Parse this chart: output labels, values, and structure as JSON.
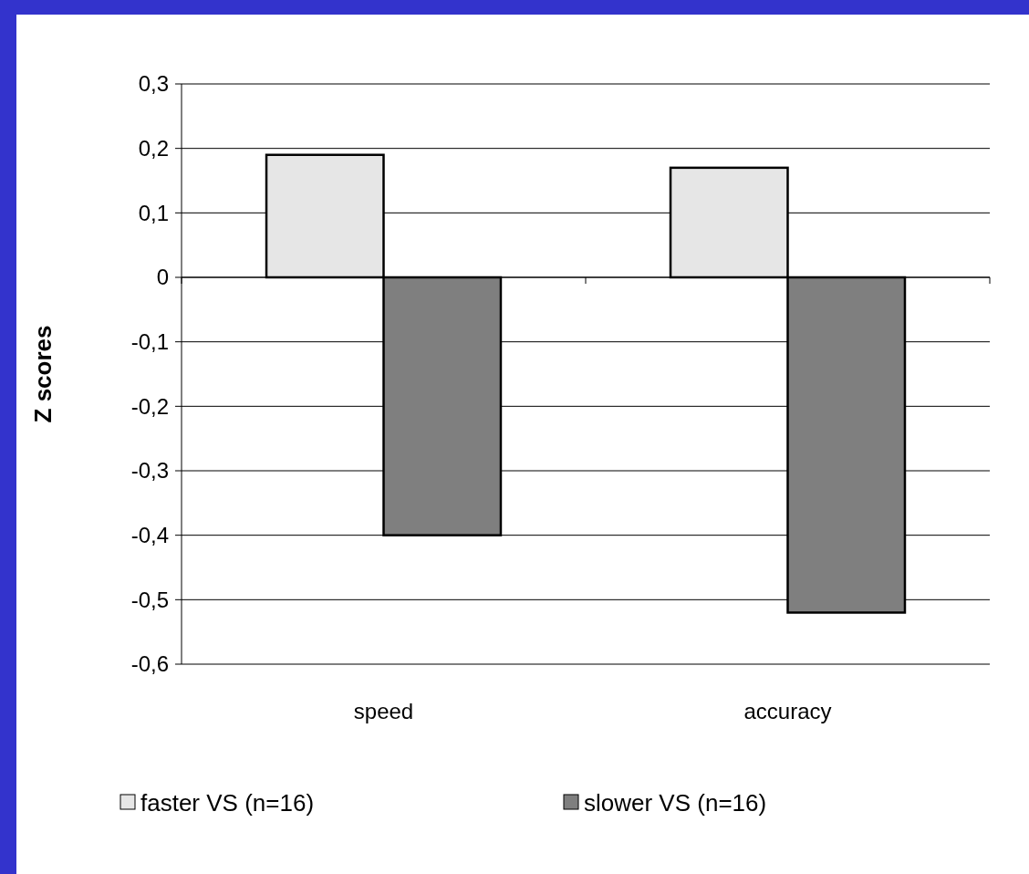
{
  "chart_data": {
    "type": "bar",
    "ylabel": "Z scores",
    "categories": [
      "speed",
      "accuracy"
    ],
    "series": [
      {
        "name": "faster VS  (n=16)",
        "color": "#e6e6e6",
        "values": [
          0.19,
          0.17
        ]
      },
      {
        "name": "slower VS (n=16)",
        "color": "#7f7f7f",
        "values": [
          -0.4,
          -0.52
        ]
      }
    ],
    "ylim": [
      -0.6,
      0.3
    ],
    "yticks": [
      {
        "value": 0.3,
        "label": "0,3"
      },
      {
        "value": 0.2,
        "label": "0,2"
      },
      {
        "value": 0.1,
        "label": "0,1"
      },
      0,
      {
        "value": -0.1,
        "label": "-0,1"
      },
      {
        "value": -0.2,
        "label": "-0,2"
      },
      {
        "value": -0.3,
        "label": "-0,3"
      },
      {
        "value": -0.4,
        "label": "-0,4"
      },
      {
        "value": -0.5,
        "label": "-0,5"
      },
      {
        "value": -0.6,
        "label": "-0,6"
      }
    ],
    "grid": "y",
    "legend": "bottom"
  }
}
